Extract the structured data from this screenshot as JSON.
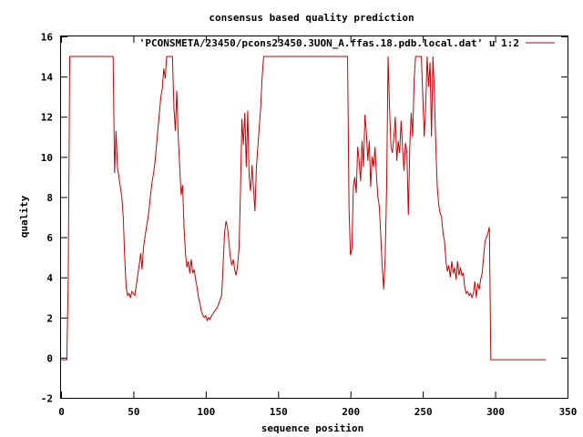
{
  "chart_data": {
    "type": "line",
    "title": "consensus based quality prediction",
    "xlabel": "sequence position",
    "ylabel": "quality",
    "xlim": [
      0,
      350
    ],
    "ylim": [
      -2,
      16
    ],
    "x_ticks": [
      0,
      50,
      100,
      150,
      200,
      250,
      300,
      350
    ],
    "y_ticks": [
      -2,
      0,
      2,
      4,
      6,
      8,
      10,
      12,
      14,
      16
    ],
    "grid": false,
    "legend_position": "top-right",
    "series": [
      {
        "name": "'PCONSMETA/23450/pcons23450.3UON_A.ffas.18.pdb.local.dat' u 1:2",
        "color": "#cc0000",
        "points": [
          [
            0,
            -0.1
          ],
          [
            4,
            -0.1
          ],
          [
            5,
            4
          ],
          [
            6,
            15
          ],
          [
            36,
            15
          ],
          [
            37,
            9.2
          ],
          [
            38,
            11.3
          ],
          [
            39,
            9.5
          ],
          [
            40,
            9
          ],
          [
            41,
            8.5
          ],
          [
            42,
            8
          ],
          [
            43,
            7
          ],
          [
            44,
            5
          ],
          [
            45,
            3.5
          ],
          [
            46,
            3.1
          ],
          [
            47,
            3.2
          ],
          [
            48,
            3.0
          ],
          [
            49,
            3.3
          ],
          [
            50,
            3.2
          ],
          [
            51,
            3.1
          ],
          [
            52,
            3.6
          ],
          [
            53,
            4.1
          ],
          [
            54,
            4.6
          ],
          [
            55,
            5.2
          ],
          [
            56,
            4.4
          ],
          [
            57,
            5.5
          ],
          [
            58,
            6
          ],
          [
            59,
            6.5
          ],
          [
            60,
            6.9
          ],
          [
            61,
            7.5
          ],
          [
            62,
            8.2
          ],
          [
            63,
            8.8
          ],
          [
            64,
            9.2
          ],
          [
            65,
            9.8
          ],
          [
            66,
            10.6
          ],
          [
            67,
            11.4
          ],
          [
            68,
            12.2
          ],
          [
            69,
            13.0
          ],
          [
            70,
            13.4
          ],
          [
            71,
            14.4
          ],
          [
            72,
            13.9
          ],
          [
            73,
            15
          ],
          [
            77,
            15
          ],
          [
            78,
            12.5
          ],
          [
            79,
            11.3
          ],
          [
            80,
            13.3
          ],
          [
            81,
            11
          ],
          [
            82,
            9.5
          ],
          [
            83,
            8.1
          ],
          [
            84,
            8.6
          ],
          [
            85,
            6.5
          ],
          [
            86,
            5.2
          ],
          [
            87,
            4.5
          ],
          [
            88,
            4.8
          ],
          [
            89,
            4.2
          ],
          [
            90,
            4.9
          ],
          [
            91,
            4.2
          ],
          [
            92,
            4.4
          ],
          [
            93,
            3.9
          ],
          [
            94,
            3.5
          ],
          [
            95,
            3.0
          ],
          [
            96,
            2.7
          ],
          [
            97,
            2.3
          ],
          [
            98,
            2.1
          ],
          [
            99,
            2.0
          ],
          [
            100,
            2.1
          ],
          [
            101,
            1.85
          ],
          [
            102,
            2.0
          ],
          [
            103,
            1.9
          ],
          [
            104,
            2.1
          ],
          [
            105,
            2.2
          ],
          [
            106,
            2.3
          ],
          [
            107,
            2.4
          ],
          [
            108,
            2.5
          ],
          [
            109,
            2.7
          ],
          [
            110,
            2.9
          ],
          [
            111,
            3.1
          ],
          [
            112,
            4.6
          ],
          [
            113,
            6.2
          ],
          [
            114,
            6.8
          ],
          [
            115,
            6.5
          ],
          [
            116,
            5.8
          ],
          [
            117,
            5.0
          ],
          [
            118,
            4.6
          ],
          [
            119,
            4.9
          ],
          [
            120,
            4.4
          ],
          [
            121,
            4.1
          ],
          [
            122,
            4.6
          ],
          [
            123,
            5.4
          ],
          [
            124,
            8.3
          ],
          [
            125,
            11.9
          ],
          [
            126,
            10.6
          ],
          [
            127,
            12.2
          ],
          [
            128,
            9.5
          ],
          [
            129,
            12.3
          ],
          [
            130,
            9
          ],
          [
            131,
            8.3
          ],
          [
            132,
            9.6
          ],
          [
            133,
            8.4
          ],
          [
            134,
            7.3
          ],
          [
            135,
            9.5
          ],
          [
            136,
            10.5
          ],
          [
            137,
            11.5
          ],
          [
            138,
            12.5
          ],
          [
            139,
            14.0
          ],
          [
            140,
            15
          ],
          [
            198,
            15
          ],
          [
            199,
            7.5
          ],
          [
            200,
            5.1
          ],
          [
            201,
            5.4
          ],
          [
            202,
            8.5
          ],
          [
            203,
            9.0
          ],
          [
            204,
            8.2
          ],
          [
            205,
            10.5
          ],
          [
            206,
            9.8
          ],
          [
            207,
            8.8
          ],
          [
            208,
            10.8
          ],
          [
            209,
            9.5
          ],
          [
            210,
            12.1
          ],
          [
            211,
            11.2
          ],
          [
            212,
            9.8
          ],
          [
            213,
            10.8
          ],
          [
            214,
            8.5
          ],
          [
            215,
            10.0
          ],
          [
            216,
            9.5
          ],
          [
            217,
            10.5
          ],
          [
            218,
            9.0
          ],
          [
            219,
            8.0
          ],
          [
            220,
            7.5
          ],
          [
            221,
            6.0
          ],
          [
            222,
            4.5
          ],
          [
            223,
            3.4
          ],
          [
            224,
            5.0
          ],
          [
            225,
            8.5
          ],
          [
            226,
            15
          ],
          [
            227,
            12.5
          ],
          [
            228,
            10.5
          ],
          [
            229,
            10.2
          ],
          [
            230,
            11.0
          ],
          [
            231,
            12.0
          ],
          [
            232,
            9.8
          ],
          [
            233,
            10.8
          ],
          [
            234,
            10.2
          ],
          [
            235,
            11.8
          ],
          [
            236,
            10.5
          ],
          [
            237,
            9.3
          ],
          [
            238,
            10.7
          ],
          [
            239,
            10.2
          ],
          [
            240,
            7.1
          ],
          [
            241,
            10.5
          ],
          [
            242,
            12.2
          ],
          [
            243,
            11.0
          ],
          [
            244,
            13.8
          ],
          [
            245,
            15
          ],
          [
            249,
            15
          ],
          [
            250,
            13.0
          ],
          [
            251,
            11.0
          ],
          [
            252,
            12.5
          ],
          [
            253,
            15
          ],
          [
            254,
            13.5
          ],
          [
            255,
            14.7
          ],
          [
            256,
            11.0
          ],
          [
            257,
            15
          ],
          [
            258,
            13.2
          ],
          [
            259,
            10.5
          ],
          [
            260,
            8.5
          ],
          [
            261,
            7.6
          ],
          [
            262,
            7.2
          ],
          [
            263,
            7.0
          ],
          [
            264,
            6.2
          ],
          [
            265,
            5.8
          ],
          [
            266,
            4.8
          ],
          [
            267,
            4.3
          ],
          [
            268,
            4.6
          ],
          [
            269,
            4.0
          ],
          [
            270,
            4.8
          ],
          [
            271,
            4.2
          ],
          [
            272,
            4.5
          ],
          [
            273,
            3.9
          ],
          [
            274,
            4.8
          ],
          [
            275,
            4.1
          ],
          [
            276,
            4.5
          ],
          [
            277,
            4.1
          ],
          [
            278,
            4.2
          ],
          [
            279,
            3.5
          ],
          [
            280,
            3.2
          ],
          [
            281,
            3.3
          ],
          [
            282,
            3.1
          ],
          [
            283,
            3.2
          ],
          [
            284,
            3.0
          ],
          [
            285,
            3.2
          ],
          [
            286,
            3.8
          ],
          [
            287,
            3.0
          ],
          [
            288,
            3.7
          ],
          [
            289,
            3.4
          ],
          [
            290,
            3.9
          ],
          [
            291,
            4.2
          ],
          [
            292,
            5.0
          ],
          [
            293,
            5.8
          ],
          [
            294,
            6.0
          ],
          [
            295,
            6.2
          ],
          [
            296,
            6.5
          ],
          [
            297,
            -0.1
          ],
          [
            335,
            -0.1
          ]
        ]
      }
    ]
  }
}
